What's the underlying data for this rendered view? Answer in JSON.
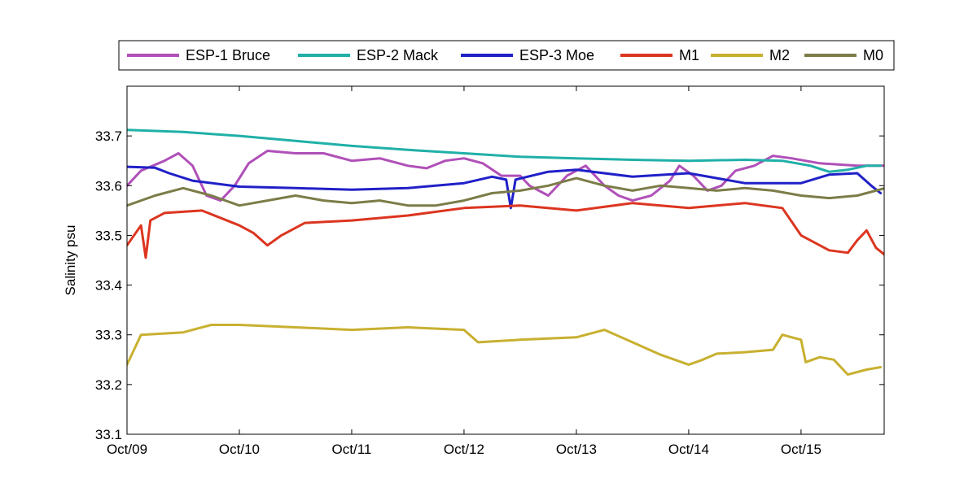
{
  "chart_data": {
    "type": "line",
    "title": "",
    "xlabel": "",
    "ylabel": "Salinity psu",
    "x_axis": {
      "type": "date",
      "range": [
        "Oct/09",
        "Oct/15 (+0.74 day)"
      ],
      "ticks": [
        "Oct/09",
        "Oct/10",
        "Oct/11",
        "Oct/12",
        "Oct/13",
        "Oct/14",
        "Oct/15"
      ]
    },
    "ylim": [
      33.1,
      33.8
    ],
    "yticks": [
      "33.1",
      "33.2",
      "33.3",
      "33.4",
      "33.5",
      "33.6",
      "33.7"
    ],
    "ytick_values": [
      33.1,
      33.2,
      33.3,
      33.4,
      33.5,
      33.6,
      33.7
    ],
    "grid": false,
    "legend": {
      "placement": "top-outside",
      "orientation": "horizontal"
    },
    "series": [
      {
        "name": "ESP-1 Bruce",
        "color": "#b050b8",
        "points": [
          [
            "Oct/09 00:00",
            33.6
          ],
          [
            "Oct/09 03:00",
            33.63
          ],
          [
            "Oct/09 08:00",
            33.65
          ],
          [
            "Oct/09 11:00",
            33.665
          ],
          [
            "Oct/09 14:00",
            33.64
          ],
          [
            "Oct/09 17:00",
            33.58
          ],
          [
            "Oct/09 20:00",
            33.57
          ],
          [
            "Oct/09 23:00",
            33.6
          ],
          [
            "Oct/10 02:00",
            33.645
          ],
          [
            "Oct/10 06:00",
            33.67
          ],
          [
            "Oct/10 12:00",
            33.665
          ],
          [
            "Oct/10 18:00",
            33.665
          ],
          [
            "Oct/11 00:00",
            33.65
          ],
          [
            "Oct/11 06:00",
            33.655
          ],
          [
            "Oct/11 12:00",
            33.64
          ],
          [
            "Oct/11 16:00",
            33.635
          ],
          [
            "Oct/11 20:00",
            33.65
          ],
          [
            "Oct/12 00:00",
            33.655
          ],
          [
            "Oct/12 04:00",
            33.645
          ],
          [
            "Oct/12 08:00",
            33.62
          ],
          [
            "Oct/12 12:00",
            33.62
          ],
          [
            "Oct/12 14:00",
            33.6
          ],
          [
            "Oct/12 18:00",
            33.58
          ],
          [
            "Oct/12 22:00",
            33.62
          ],
          [
            "Oct/13 02:00",
            33.64
          ],
          [
            "Oct/13 06:00",
            33.6
          ],
          [
            "Oct/13 09:00",
            33.58
          ],
          [
            "Oct/13 12:00",
            33.57
          ],
          [
            "Oct/13 16:00",
            33.58
          ],
          [
            "Oct/13 20:00",
            33.61
          ],
          [
            "Oct/13 22:00",
            33.64
          ],
          [
            "Oct/14 01:00",
            33.62
          ],
          [
            "Oct/14 04:00",
            33.59
          ],
          [
            "Oct/14 07:00",
            33.6
          ],
          [
            "Oct/14 10:00",
            33.63
          ],
          [
            "Oct/14 14:00",
            33.64
          ],
          [
            "Oct/14 18:00",
            33.66
          ],
          [
            "Oct/14 22:00",
            33.655
          ],
          [
            "Oct/15 04:00",
            33.645
          ],
          [
            "Oct/15 12:00",
            33.64
          ],
          [
            "Oct/15 18:00",
            33.64
          ]
        ]
      },
      {
        "name": "ESP-2 Mack",
        "color": "#20b0a8",
        "points": [
          [
            "Oct/09 00:00",
            33.712
          ],
          [
            "Oct/09 12:00",
            33.708
          ],
          [
            "Oct/10 00:00",
            33.7
          ],
          [
            "Oct/10 12:00",
            33.69
          ],
          [
            "Oct/11 00:00",
            33.68
          ],
          [
            "Oct/11 12:00",
            33.672
          ],
          [
            "Oct/12 00:00",
            33.665
          ],
          [
            "Oct/12 12:00",
            33.658
          ],
          [
            "Oct/13 00:00",
            33.655
          ],
          [
            "Oct/13 12:00",
            33.652
          ],
          [
            "Oct/14 00:00",
            33.65
          ],
          [
            "Oct/14 12:00",
            33.652
          ],
          [
            "Oct/14 20:00",
            33.65
          ],
          [
            "Oct/15 02:00",
            33.64
          ],
          [
            "Oct/15 06:00",
            33.628
          ],
          [
            "Oct/15 10:00",
            33.632
          ],
          [
            "Oct/15 14:00",
            33.64
          ],
          [
            "Oct/15 17:00",
            33.64
          ]
        ]
      },
      {
        "name": "ESP-3 Moe",
        "color": "#2020c8",
        "points": [
          [
            "Oct/09 00:00",
            33.638
          ],
          [
            "Oct/09 06:00",
            33.636
          ],
          [
            "Oct/09 09:00",
            33.625
          ],
          [
            "Oct/09 14:00",
            33.61
          ],
          [
            "Oct/10 00:00",
            33.598
          ],
          [
            "Oct/10 12:00",
            33.595
          ],
          [
            "Oct/11 00:00",
            33.592
          ],
          [
            "Oct/11 12:00",
            33.595
          ],
          [
            "Oct/12 00:00",
            33.605
          ],
          [
            "Oct/12 06:00",
            33.618
          ],
          [
            "Oct/12 09:00",
            33.612
          ],
          [
            "Oct/12 10:00",
            33.555
          ],
          [
            "Oct/12 11:00",
            33.612
          ],
          [
            "Oct/12 18:00",
            33.628
          ],
          [
            "Oct/13 00:00",
            33.632
          ],
          [
            "Oct/13 12:00",
            33.618
          ],
          [
            "Oct/14 00:00",
            33.625
          ],
          [
            "Oct/14 12:00",
            33.605
          ],
          [
            "Oct/15 00:00",
            33.605
          ],
          [
            "Oct/15 06:00",
            33.622
          ],
          [
            "Oct/15 12:00",
            33.625
          ],
          [
            "Oct/15 15:00",
            33.6
          ],
          [
            "Oct/15 17:00",
            33.585
          ]
        ]
      },
      {
        "name": "M1",
        "color": "#dc3520",
        "points": [
          [
            "Oct/09 00:00",
            33.48
          ],
          [
            "Oct/09 03:00",
            33.52
          ],
          [
            "Oct/09 04:00",
            33.455
          ],
          [
            "Oct/09 05:00",
            33.53
          ],
          [
            "Oct/09 08:00",
            33.545
          ],
          [
            "Oct/09 16:00",
            33.55
          ],
          [
            "Oct/10 00:00",
            33.52
          ],
          [
            "Oct/10 03:00",
            33.505
          ],
          [
            "Oct/10 06:00",
            33.48
          ],
          [
            "Oct/10 09:00",
            33.5
          ],
          [
            "Oct/10 14:00",
            33.525
          ],
          [
            "Oct/11 00:00",
            33.53
          ],
          [
            "Oct/11 12:00",
            33.54
          ],
          [
            "Oct/12 00:00",
            33.555
          ],
          [
            "Oct/12 12:00",
            33.56
          ],
          [
            "Oct/13 00:00",
            33.55
          ],
          [
            "Oct/13 12:00",
            33.565
          ],
          [
            "Oct/14 00:00",
            33.555
          ],
          [
            "Oct/14 12:00",
            33.565
          ],
          [
            "Oct/14 20:00",
            33.555
          ],
          [
            "Oct/15 00:00",
            33.5
          ],
          [
            "Oct/15 06:00",
            33.47
          ],
          [
            "Oct/15 10:00",
            33.465
          ],
          [
            "Oct/15 12:00",
            33.49
          ],
          [
            "Oct/15 14:00",
            33.51
          ],
          [
            "Oct/15 16:00",
            33.475
          ],
          [
            "Oct/15 18:00",
            33.46
          ]
        ]
      },
      {
        "name": "M2",
        "color": "#c8b030",
        "points": [
          [
            "Oct/09 00:00",
            33.24
          ],
          [
            "Oct/09 03:00",
            33.3
          ],
          [
            "Oct/09 12:00",
            33.305
          ],
          [
            "Oct/09 18:00",
            33.32
          ],
          [
            "Oct/10 00:00",
            33.32
          ],
          [
            "Oct/10 12:00",
            33.315
          ],
          [
            "Oct/11 00:00",
            33.31
          ],
          [
            "Oct/11 12:00",
            33.315
          ],
          [
            "Oct/12 00:00",
            33.31
          ],
          [
            "Oct/12 03:00",
            33.285
          ],
          [
            "Oct/12 12:00",
            33.29
          ],
          [
            "Oct/13 00:00",
            33.295
          ],
          [
            "Oct/13 06:00",
            33.31
          ],
          [
            "Oct/13 12:00",
            33.285
          ],
          [
            "Oct/13 18:00",
            33.26
          ],
          [
            "Oct/14 00:00",
            33.24
          ],
          [
            "Oct/14 03:00",
            33.25
          ],
          [
            "Oct/14 06:00",
            33.262
          ],
          [
            "Oct/14 12:00",
            33.265
          ],
          [
            "Oct/14 18:00",
            33.27
          ],
          [
            "Oct/14 20:00",
            33.3
          ],
          [
            "Oct/15 00:00",
            33.29
          ],
          [
            "Oct/15 01:00",
            33.245
          ],
          [
            "Oct/15 04:00",
            33.255
          ],
          [
            "Oct/15 07:00",
            33.25
          ],
          [
            "Oct/15 10:00",
            33.22
          ],
          [
            "Oct/15 14:00",
            33.23
          ],
          [
            "Oct/15 17:00",
            33.235
          ]
        ]
      },
      {
        "name": "M0",
        "color": "#7c7c48",
        "points": [
          [
            "Oct/09 00:00",
            33.56
          ],
          [
            "Oct/09 06:00",
            33.58
          ],
          [
            "Oct/09 12:00",
            33.595
          ],
          [
            "Oct/09 18:00",
            33.58
          ],
          [
            "Oct/10 00:00",
            33.56
          ],
          [
            "Oct/10 06:00",
            33.57
          ],
          [
            "Oct/10 12:00",
            33.58
          ],
          [
            "Oct/10 18:00",
            33.57
          ],
          [
            "Oct/11 00:00",
            33.565
          ],
          [
            "Oct/11 06:00",
            33.57
          ],
          [
            "Oct/11 12:00",
            33.56
          ],
          [
            "Oct/11 18:00",
            33.56
          ],
          [
            "Oct/12 00:00",
            33.57
          ],
          [
            "Oct/12 06:00",
            33.585
          ],
          [
            "Oct/12 12:00",
            33.59
          ],
          [
            "Oct/12 18:00",
            33.6
          ],
          [
            "Oct/13 00:00",
            33.615
          ],
          [
            "Oct/13 06:00",
            33.6
          ],
          [
            "Oct/13 12:00",
            33.59
          ],
          [
            "Oct/13 18:00",
            33.6
          ],
          [
            "Oct/14 00:00",
            33.595
          ],
          [
            "Oct/14 06:00",
            33.59
          ],
          [
            "Oct/14 12:00",
            33.595
          ],
          [
            "Oct/14 18:00",
            33.59
          ],
          [
            "Oct/15 00:00",
            33.58
          ],
          [
            "Oct/15 06:00",
            33.575
          ],
          [
            "Oct/15 12:00",
            33.58
          ],
          [
            "Oct/15 18:00",
            33.595
          ]
        ]
      }
    ]
  }
}
